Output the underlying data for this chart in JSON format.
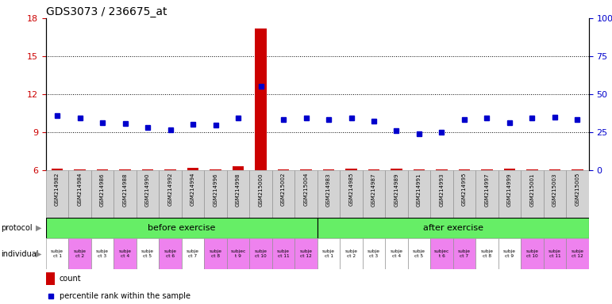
{
  "title": "GDS3073 / 236675_at",
  "ylim_left": [
    6,
    18
  ],
  "ylim_right": [
    0,
    100
  ],
  "yticks_left": [
    6,
    9,
    12,
    15,
    18
  ],
  "yticks_right": [
    0,
    25,
    50,
    75,
    100
  ],
  "ytick_labels_right": [
    "0",
    "25",
    "50",
    "75",
    "100%"
  ],
  "samples": [
    "GSM214982",
    "GSM214984",
    "GSM214986",
    "GSM214988",
    "GSM214990",
    "GSM214992",
    "GSM214994",
    "GSM214996",
    "GSM214998",
    "GSM215000",
    "GSM215002",
    "GSM215004",
    "GSM214983",
    "GSM214985",
    "GSM214987",
    "GSM214989",
    "GSM214991",
    "GSM214993",
    "GSM214995",
    "GSM214997",
    "GSM214999",
    "GSM215001",
    "GSM215003",
    "GSM215005"
  ],
  "count_values": [
    6.1,
    6.05,
    6.05,
    6.05,
    6.05,
    6.05,
    6.2,
    6.05,
    6.3,
    17.2,
    6.05,
    6.05,
    6.05,
    6.1,
    6.05,
    6.1,
    6.05,
    6.05,
    6.05,
    6.05,
    6.1,
    6.05,
    6.05,
    6.05
  ],
  "percentile_values": [
    10.3,
    10.15,
    9.75,
    9.7,
    9.35,
    9.2,
    9.6,
    9.55,
    10.15,
    12.6,
    10.0,
    10.1,
    10.0,
    10.1,
    9.85,
    9.1,
    8.9,
    9.0,
    10.0,
    10.15,
    9.75,
    10.1,
    10.2,
    10.0
  ],
  "protocol_labels": [
    "before exercise",
    "after exercise"
  ],
  "individual_labels": [
    "subje\nct 1",
    "subje\nct 2",
    "subje\nct 3",
    "subje\nct 4",
    "subje\nct 5",
    "subje\nct 6",
    "subje\nct 7",
    "subje\nct 8",
    "subjec\nt 9",
    "subje\nct 10",
    "subje\nct 11",
    "subje\nct 12",
    "subje\nct 1",
    "subje\nct 2",
    "subje\nct 3",
    "subje\nct 4",
    "subje\nct 5",
    "subjec\nt 6",
    "subje\nct 7",
    "subje\nct 8",
    "subje\nct 9",
    "subje\nct 10",
    "subje\nct 11",
    "subje\nct 12"
  ],
  "individual_colors": [
    "#ffffff",
    "#ee82ee",
    "#ffffff",
    "#ee82ee",
    "#ffffff",
    "#ee82ee",
    "#ffffff",
    "#ee82ee",
    "#ee82ee",
    "#ee82ee",
    "#ee82ee",
    "#ee82ee",
    "#ffffff",
    "#ffffff",
    "#ffffff",
    "#ffffff",
    "#ffffff",
    "#ee82ee",
    "#ee82ee",
    "#ffffff",
    "#ffffff",
    "#ee82ee",
    "#ee82ee",
    "#ee82ee"
  ],
  "count_color": "#cc0000",
  "percentile_color": "#0000cc",
  "bg_color": "#ffffff",
  "protocol_color": "#66ee66",
  "axis_color_left": "#cc0000",
  "axis_color_right": "#0000cc",
  "n_before": 12,
  "n_after": 12
}
